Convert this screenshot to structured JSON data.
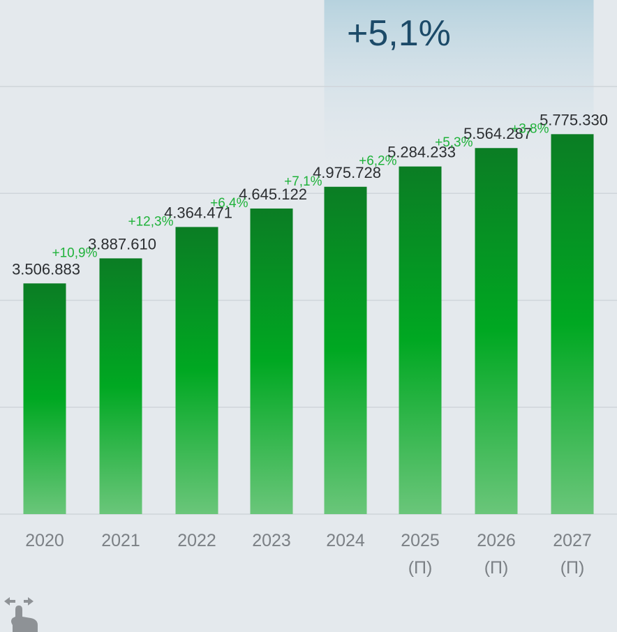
{
  "chart_data": {
    "type": "bar",
    "categories": [
      "2020",
      "2021",
      "2022",
      "2023",
      "2024",
      "2025",
      "2026",
      "2027"
    ],
    "category_notes": [
      "",
      "",
      "",
      "",
      "",
      "(П)",
      "(П)",
      "(П)"
    ],
    "values": [
      3506883,
      3887610,
      4364471,
      4645122,
      4975728,
      5284233,
      5564287,
      5775330
    ],
    "value_labels": [
      "3.506.883",
      "3.887.610",
      "4.364.471",
      "4.645.122",
      "4.975.728",
      "5.284.233",
      "5.564.287",
      "5.775.330"
    ],
    "growth_labels": [
      "",
      "+10,9%",
      "+12,3%",
      "+6,4%",
      "+7,1%",
      "+6,2%",
      "+5,3%",
      "+3,8%"
    ],
    "highlight": {
      "from_index": 4,
      "to_index": 7,
      "label": "+5,1%"
    },
    "ylim": [
      0,
      6500000
    ],
    "gridlines": [
      0,
      1625000,
      3250000,
      4875000,
      6500000
    ],
    "grid": true,
    "title": "",
    "xlabel": "",
    "ylabel": ""
  },
  "colors": {
    "bar_top": "#0b7d24",
    "bar_mid": "#00a822",
    "bar_bottom": "#6ac67a",
    "growth": "#1fb23a",
    "highlight_top": "#b6d2de",
    "highlight_bottom": "#e1e8ee",
    "cagr": "#1c4a68",
    "grid": "#cfd5da"
  },
  "icons": {
    "swipe": "swipe-hand-icon"
  }
}
